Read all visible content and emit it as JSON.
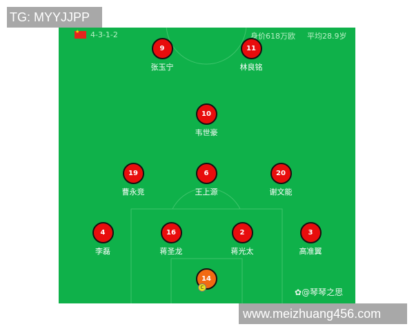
{
  "watermarks": {
    "top": "TG: MYYJJPP",
    "bottom": "www.meizhuang456.com"
  },
  "header": {
    "flag_icon": "china-flag-icon",
    "formation": "4-3-1-2",
    "market_value": "身价618万欧",
    "average_age": "平均28.9岁"
  },
  "colors": {
    "pitch": "#0fb14a",
    "player_disc": "#e80d0d",
    "goalkeeper_disc": "#f26a12",
    "captain_badge": "#e9e21a"
  },
  "players": [
    {
      "number": "9",
      "name": "张玉宁"
    },
    {
      "number": "11",
      "name": "林良铭"
    },
    {
      "number": "10",
      "name": "韦世豪"
    },
    {
      "number": "19",
      "name": "曹永竞"
    },
    {
      "number": "6",
      "name": "王上源"
    },
    {
      "number": "20",
      "name": "谢文能"
    },
    {
      "number": "4",
      "name": "李磊"
    },
    {
      "number": "16",
      "name": "蒋圣龙"
    },
    {
      "number": "2",
      "name": "蒋光太"
    },
    {
      "number": "3",
      "name": "高准翼"
    },
    {
      "number": "14",
      "name": "",
      "captain": "C"
    }
  ],
  "credit": "@琴琴之思"
}
